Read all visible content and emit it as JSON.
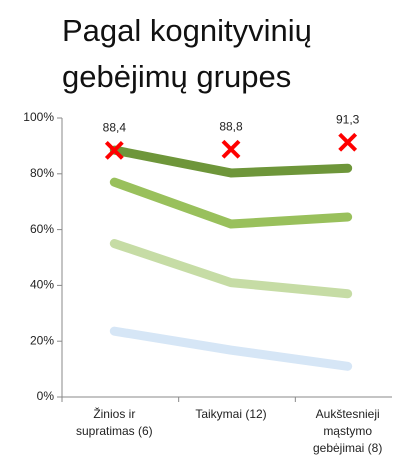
{
  "chart_data": {
    "type": "line",
    "title": "Pagal kognityvinių gebėjimų grupes",
    "categories": [
      "Žinios ir\nsupratimas (6)",
      "Taikymai (12)",
      "Aukštesnieji\nmąstymo\ngebėjimai (8)"
    ],
    "series": [
      {
        "color": "#6e963a",
        "values": [
          88.5,
          80.3,
          82
        ]
      },
      {
        "color": "#99c05c",
        "values": [
          77,
          62,
          64.5
        ]
      },
      {
        "color": "#c6dca5",
        "values": [
          55,
          41,
          37
        ]
      },
      {
        "color": "#d6e6f6",
        "values": [
          23.6,
          16.8,
          11
        ]
      }
    ],
    "markers": {
      "color": "#ff0000",
      "values": [
        88.4,
        88.8,
        91.3
      ],
      "value_labels": [
        "88,4",
        "88,8",
        "91,3"
      ]
    },
    "ylim": [
      0,
      100
    ],
    "yticks": [
      {
        "value": 0,
        "label": "0%"
      },
      {
        "value": 20,
        "label": "20%"
      },
      {
        "value": 40,
        "label": "40%"
      },
      {
        "value": 60,
        "label": "60%"
      },
      {
        "value": 80,
        "label": "80%"
      },
      {
        "value": 100,
        "label": "100%"
      }
    ]
  }
}
